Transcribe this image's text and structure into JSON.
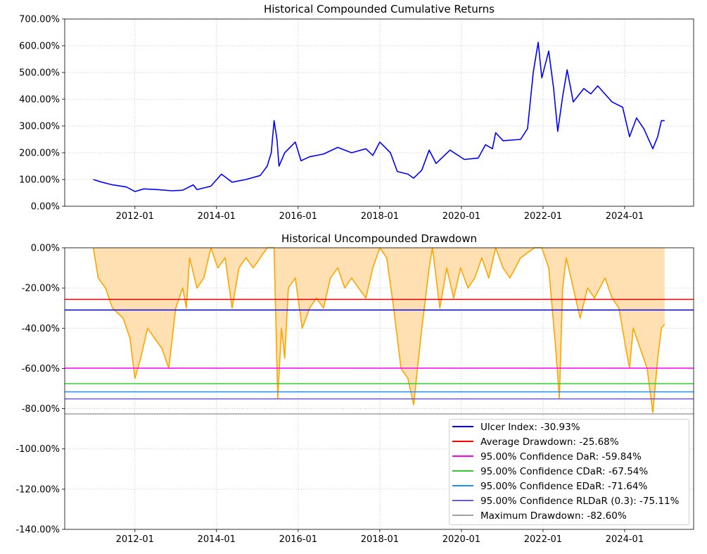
{
  "chart_data": [
    {
      "type": "line",
      "title": "Historical Compounded Cumulative Returns",
      "xlim": [
        2010.28,
        2025.69
      ],
      "ylim": [
        0,
        700
      ],
      "grid": true,
      "color": "#0000ff",
      "x_ticks": [
        {
          "v": 2012,
          "label": "2012-01"
        },
        {
          "v": 2014,
          "label": "2014-01"
        },
        {
          "v": 2016,
          "label": "2016-01"
        },
        {
          "v": 2018,
          "label": "2018-01"
        },
        {
          "v": 2020,
          "label": "2020-01"
        },
        {
          "v": 2022,
          "label": "2022-01"
        },
        {
          "v": 2024,
          "label": "2024-01"
        }
      ],
      "y_ticks": [
        {
          "v": 0,
          "label": "0.00%"
        },
        {
          "v": 100,
          "label": "100.00%"
        },
        {
          "v": 200,
          "label": "200.00%"
        },
        {
          "v": 300,
          "label": "300.00%"
        },
        {
          "v": 400,
          "label": "400.00%"
        },
        {
          "v": 500,
          "label": "500.00%"
        },
        {
          "v": 600,
          "label": "600.00%"
        },
        {
          "v": 700,
          "label": "700.00%"
        }
      ],
      "series": [
        {
          "name": "Cumulative Returns",
          "x": [
            2010.98,
            2011.19,
            2011.45,
            2011.79,
            2012.0,
            2012.22,
            2012.57,
            2012.91,
            2013.17,
            2013.43,
            2013.52,
            2013.86,
            2014.12,
            2014.38,
            2014.72,
            2015.07,
            2015.24,
            2015.34,
            2015.41,
            2015.48,
            2015.53,
            2015.67,
            2015.93,
            2016.07,
            2016.28,
            2016.62,
            2016.97,
            2017.31,
            2017.66,
            2017.83,
            2018.0,
            2018.26,
            2018.43,
            2018.69,
            2018.83,
            2019.03,
            2019.21,
            2019.38,
            2019.72,
            2020.07,
            2020.41,
            2020.59,
            2020.76,
            2020.84,
            2021.02,
            2021.45,
            2021.62,
            2021.76,
            2021.88,
            2021.97,
            2022.14,
            2022.26,
            2022.36,
            2022.48,
            2022.59,
            2022.74,
            2023.0,
            2023.17,
            2023.34,
            2023.69,
            2023.95,
            2024.12,
            2024.29,
            2024.47,
            2024.69,
            2024.81,
            2024.9,
            2024.98
          ],
          "y": [
            100,
            90,
            80,
            72,
            55,
            65,
            62,
            58,
            60,
            80,
            62,
            75,
            120,
            90,
            100,
            115,
            150,
            200,
            320,
            250,
            150,
            200,
            240,
            170,
            185,
            195,
            220,
            200,
            215,
            190,
            240,
            200,
            130,
            120,
            105,
            135,
            210,
            160,
            210,
            175,
            180,
            230,
            215,
            275,
            245,
            250,
            290,
            500,
            613,
            480,
            580,
            440,
            280,
            410,
            510,
            390,
            440,
            420,
            450,
            390,
            370,
            260,
            330,
            290,
            215,
            260,
            320,
            320
          ]
        }
      ]
    },
    {
      "type": "area",
      "title": "Historical Uncompounded Drawdown",
      "xlim": [
        2010.28,
        2025.69
      ],
      "ylim": [
        -140,
        0
      ],
      "grid": true,
      "color": "#ffa500",
      "fill_color": "#ffe0b2",
      "legend_placement": "lower-right",
      "x_ticks": [
        {
          "v": 2012,
          "label": "2012-01"
        },
        {
          "v": 2014,
          "label": "2014-01"
        },
        {
          "v": 2016,
          "label": "2016-01"
        },
        {
          "v": 2018,
          "label": "2018-01"
        },
        {
          "v": 2020,
          "label": "2020-01"
        },
        {
          "v": 2022,
          "label": "2022-01"
        },
        {
          "v": 2024,
          "label": "2024-01"
        }
      ],
      "y_ticks": [
        {
          "v": 0,
          "label": "0.00%"
        },
        {
          "v": -20,
          "label": "-20.00%"
        },
        {
          "v": -40,
          "label": "-40.00%"
        },
        {
          "v": -60,
          "label": "-60.00%"
        },
        {
          "v": -80,
          "label": "-80.00%"
        },
        {
          "v": -100,
          "label": "-100.00%"
        },
        {
          "v": -120,
          "label": "-120.00%"
        },
        {
          "v": -140,
          "label": "-140.00%"
        }
      ],
      "series": [
        {
          "name": "Drawdown",
          "x": [
            2010.98,
            2011.1,
            2011.28,
            2011.45,
            2011.71,
            2011.88,
            2012.0,
            2012.14,
            2012.31,
            2012.48,
            2012.66,
            2012.83,
            2013.0,
            2013.17,
            2013.26,
            2013.34,
            2013.52,
            2013.69,
            2013.86,
            2014.03,
            2014.21,
            2014.38,
            2014.55,
            2014.72,
            2014.9,
            2015.07,
            2015.24,
            2015.41,
            2015.5,
            2015.59,
            2015.67,
            2015.76,
            2015.93,
            2016.1,
            2016.28,
            2016.45,
            2016.62,
            2016.79,
            2016.97,
            2017.14,
            2017.31,
            2017.48,
            2017.66,
            2017.83,
            2018.0,
            2018.17,
            2018.34,
            2018.52,
            2018.69,
            2018.83,
            2018.95,
            2019.03,
            2019.21,
            2019.29,
            2019.47,
            2019.64,
            2019.81,
            2019.98,
            2020.16,
            2020.33,
            2020.5,
            2020.67,
            2020.84,
            2021.02,
            2021.19,
            2021.45,
            2021.79,
            2021.97,
            2022.14,
            2022.31,
            2022.4,
            2022.48,
            2022.57,
            2022.74,
            2022.91,
            2023.09,
            2023.26,
            2023.52,
            2023.69,
            2023.86,
            2024.03,
            2024.12,
            2024.21,
            2024.38,
            2024.55,
            2024.69,
            2024.81,
            2024.9,
            2024.98
          ],
          "y": [
            0,
            -15,
            -20,
            -30,
            -35,
            -45,
            -65,
            -55,
            -40,
            -45,
            -50,
            -60,
            -30,
            -20,
            -30,
            -5,
            -20,
            -15,
            0,
            -10,
            -5,
            -30,
            -10,
            -5,
            -10,
            -5,
            0,
            0,
            -75,
            -40,
            -55,
            -20,
            -15,
            -40,
            -30,
            -25,
            -30,
            -15,
            -10,
            -20,
            -15,
            -20,
            -25,
            -10,
            0,
            -5,
            -30,
            -60,
            -65,
            -78,
            -55,
            -40,
            -10,
            0,
            -30,
            -10,
            -25,
            -10,
            -20,
            -15,
            -5,
            -15,
            0,
            -10,
            -15,
            -5,
            0,
            0,
            -10,
            -50,
            -75,
            -20,
            -5,
            -20,
            -35,
            -20,
            -25,
            -15,
            -25,
            -30,
            -50,
            -60,
            -40,
            -50,
            -60,
            -82,
            -55,
            -40,
            -38
          ]
        }
      ],
      "hlines": [
        {
          "label": "Ulcer Index: -30.93%",
          "value": -30.93,
          "color": "#0000ff"
        },
        {
          "label": "Average Drawdown: -25.68%",
          "value": -25.68,
          "color": "#ff0000"
        },
        {
          "label": "95.00% Confidence DaR: -59.84%",
          "value": -59.84,
          "color": "#ff00ff"
        },
        {
          "label": "95.00% Confidence CDaR: -67.54%",
          "value": -67.54,
          "color": "#32cd32"
        },
        {
          "label": "95.00% Confidence EDaR: -71.64%",
          "value": -71.64,
          "color": "#1e90ff"
        },
        {
          "label": "95.00% Confidence RLDaR (0.3): -75.11%",
          "value": -75.11,
          "color": "#6a5acd"
        },
        {
          "label": "Maximum Drawdown: -82.60%",
          "value": -82.6,
          "color": "#a0a0a0"
        }
      ]
    }
  ]
}
